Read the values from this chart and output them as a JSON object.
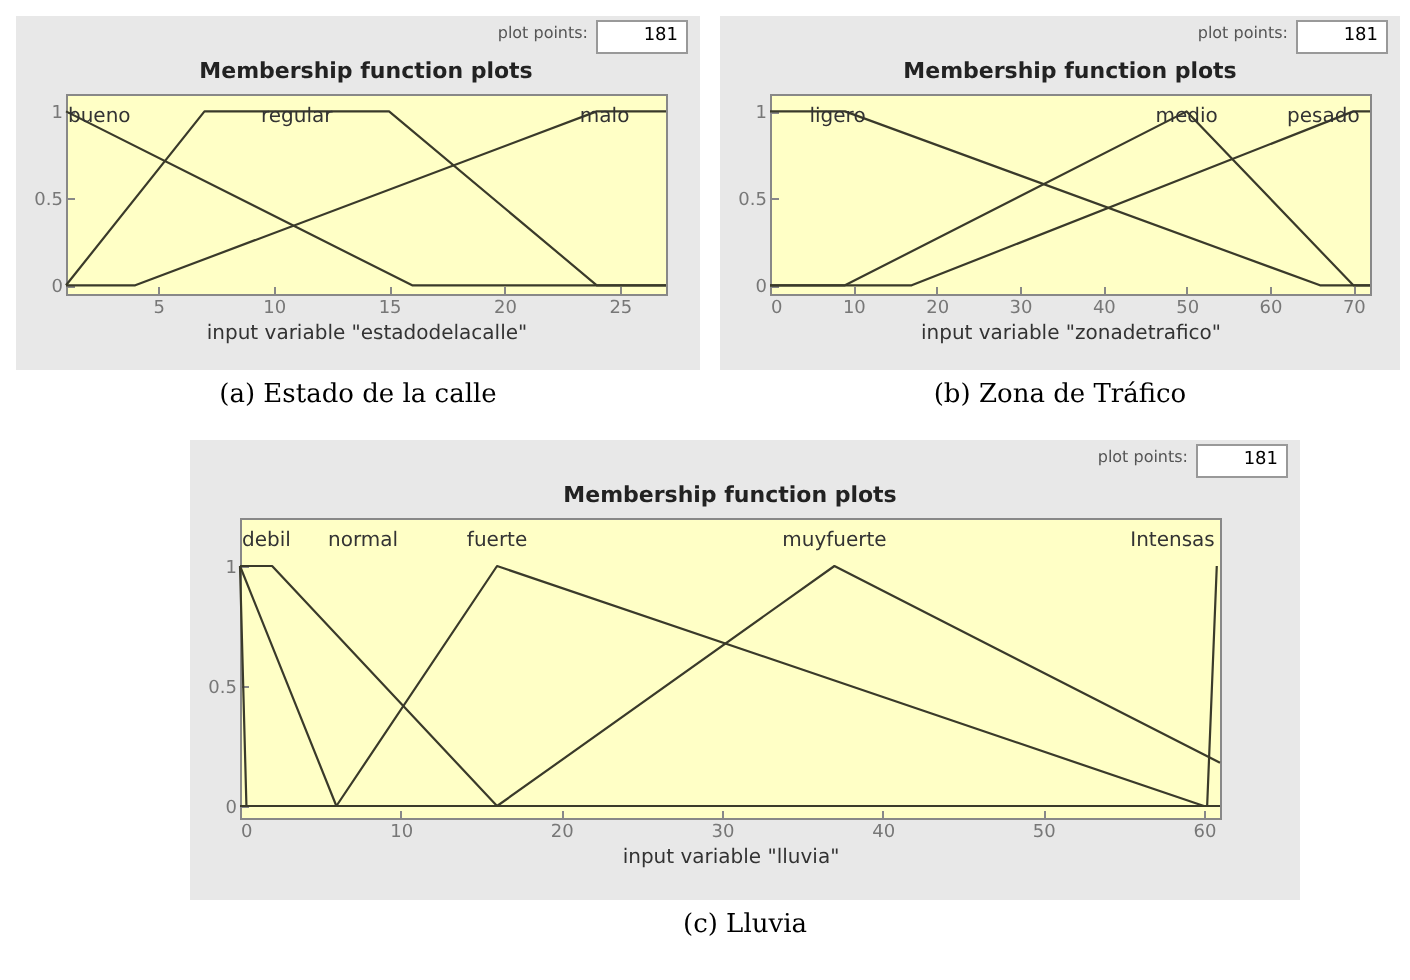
{
  "chart_data": [
    {
      "type": "line",
      "title": "Membership function plots",
      "xlabel": "input variable \"estadodelacalle\"",
      "annotations": [
        "plot points:",
        "181",
        "(a) Estado de la calle"
      ],
      "xlim": [
        1,
        27
      ],
      "xticks": [
        5,
        10,
        15,
        20,
        25
      ],
      "ylim": [
        -0.05,
        1.1
      ],
      "yticks": [
        0,
        0.5,
        1
      ],
      "grid": false,
      "legend": false,
      "series": [
        {
          "name": "bueno",
          "color": "#3a3a2a",
          "x": [
            1,
            16,
            27
          ],
          "values": [
            1,
            0,
            0
          ]
        },
        {
          "name": "regular",
          "color": "#3a3a2a",
          "x": [
            1,
            7,
            15,
            24,
            27
          ],
          "values": [
            0,
            1,
            1,
            0,
            0
          ]
        },
        {
          "name": "malo",
          "color": "#3a3a2a",
          "x": [
            1,
            4,
            24,
            27
          ],
          "values": [
            0,
            0,
            1,
            1
          ]
        }
      ]
    },
    {
      "type": "line",
      "title": "Membership function plots",
      "xlabel": "input variable \"zonadetrafico\"",
      "annotations": [
        "plot points:",
        "181",
        "(b) Zona de Tráfico"
      ],
      "xlim": [
        0,
        72
      ],
      "xticks": [
        0,
        10,
        20,
        30,
        40,
        50,
        60,
        70
      ],
      "ylim": [
        -0.05,
        1.1
      ],
      "yticks": [
        0,
        0.5,
        1
      ],
      "grid": false,
      "legend": false,
      "series": [
        {
          "name": "ligero",
          "color": "#3a3a2a",
          "x": [
            0,
            9,
            66,
            72
          ],
          "values": [
            1,
            1,
            0,
            0
          ]
        },
        {
          "name": "medio",
          "color": "#3a3a2a",
          "x": [
            0,
            9,
            50,
            70,
            72
          ],
          "values": [
            0,
            0,
            1,
            0,
            0
          ]
        },
        {
          "name": "pesado",
          "color": "#3a3a2a",
          "x": [
            0,
            17,
            70,
            72
          ],
          "values": [
            0,
            0,
            1,
            1
          ]
        }
      ]
    },
    {
      "type": "line",
      "title": "Membership function plots",
      "xlabel": "input variable \"lluvia\"",
      "annotations": [
        "plot points:",
        "181",
        "(c) Lluvia"
      ],
      "xlim": [
        0,
        61
      ],
      "xticks": [
        0,
        10,
        20,
        30,
        40,
        50,
        60
      ],
      "ylim": [
        -0.05,
        1.2
      ],
      "yticks": [
        0,
        0.5,
        1
      ],
      "grid": false,
      "legend": false,
      "series": [
        {
          "color": "#3a3a2a",
          "x": [
            0,
            0.4,
            61
          ],
          "values": [
            1,
            0,
            0
          ]
        },
        {
          "name": "debil",
          "color": "#3a3a2a",
          "x": [
            0,
            6,
            61
          ],
          "values": [
            1,
            0,
            0
          ]
        },
        {
          "name": "normal",
          "color": "#3a3a2a",
          "x": [
            0,
            2,
            16,
            61
          ],
          "values": [
            1,
            1,
            0,
            0
          ]
        },
        {
          "name": "fuerte",
          "color": "#3a3a2a",
          "x": [
            0,
            6,
            16,
            60,
            61
          ],
          "values": [
            0,
            0,
            1,
            0,
            0
          ]
        },
        {
          "name": "muyfuerte",
          "color": "#3a3a2a",
          "x": [
            0,
            16,
            37,
            61
          ],
          "values": [
            0,
            0,
            1,
            0.18
          ]
        },
        {
          "name": "Intensas",
          "color": "#3a3a2a",
          "x": [
            0,
            60.2,
            60.8
          ],
          "values": [
            0,
            0,
            1
          ]
        }
      ]
    }
  ]
}
